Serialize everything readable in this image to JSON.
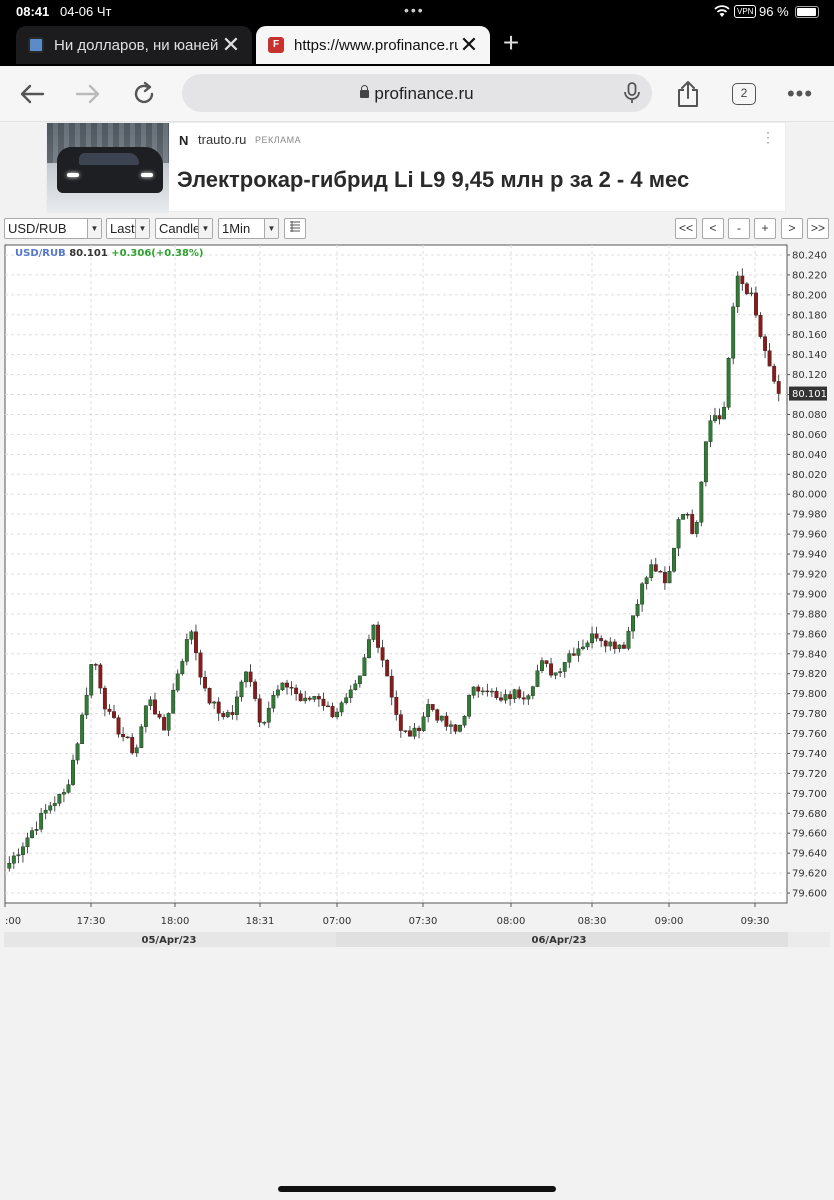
{
  "status_bar": {
    "time": "08:41",
    "date": "04-06 Чт",
    "vpn": "VPN",
    "battery": "96 %"
  },
  "tabs": [
    {
      "title": "Ни долларов, ни юаней",
      "close": "✕"
    },
    {
      "title": "https://www.profinance.ru",
      "close": "✕",
      "favicon_text": "F"
    }
  ],
  "new_tab_icon": "+",
  "address_bar": {
    "url": "profinance.ru"
  },
  "tab_count": "2",
  "menu_icon": "•••",
  "ad": {
    "source": "trauto.ru",
    "label": "РЕКЛАМА",
    "headline": "Электрокар-гибрид Li L9 9,45 млн р за 2 - 4 мес",
    "menu_icon": "⋮"
  },
  "controls": {
    "symbol": "USD/RUB",
    "price_type": "Last",
    "chart_type": "Candle",
    "interval": "1Min",
    "nav_buttons": [
      "<<",
      "<",
      "-",
      "+",
      ">",
      ">>"
    ]
  },
  "colors": {
    "up": "#2e7d32",
    "down": "#8b1a1a",
    "grid": "#dddddd",
    "price_tag": "#333333"
  },
  "chart_data": {
    "type": "candlestick",
    "symbol": "USD/RUB",
    "last": "80.101",
    "change": "+0.306(+0.38%)",
    "ylim": [
      79.59,
      80.25
    ],
    "y_ticks": [
      "80.240",
      "80.220",
      "80.200",
      "80.180",
      "80.160",
      "80.140",
      "80.120",
      "80.100",
      "80.080",
      "80.060",
      "80.040",
      "80.020",
      "80.000",
      "79.980",
      "79.960",
      "79.940",
      "79.920",
      "79.900",
      "79.880",
      "79.860",
      "79.840",
      "79.820",
      "79.800",
      "79.780",
      "79.760",
      "79.740",
      "79.720",
      "79.700",
      "79.680",
      "79.660",
      "79.640",
      "79.620",
      "79.600"
    ],
    "x_ticks": [
      ":00",
      "17:30",
      "18:00",
      "18:31",
      "07:00",
      "07:30",
      "08:00",
      "08:30",
      "09:00",
      "09:30"
    ],
    "dates": [
      "05/Apr/23",
      "06/Apr/23"
    ],
    "grid": true,
    "close_path": [
      79.63,
      79.65,
      79.67,
      79.69,
      79.7,
      79.76,
      79.84,
      79.78,
      79.76,
      79.74,
      79.8,
      79.76,
      79.82,
      79.865,
      79.8,
      79.78,
      79.78,
      79.83,
      79.77,
      79.8,
      79.81,
      79.79,
      79.8,
      79.78,
      79.79,
      79.81,
      79.87,
      79.82,
      79.76,
      79.76,
      79.79,
      79.77,
      79.76,
      79.8,
      79.81,
      79.79,
      79.8,
      79.8,
      79.83,
      79.82,
      79.84,
      79.85,
      79.86,
      79.85,
      79.85,
      79.9,
      79.93,
      79.905,
      79.99,
      79.96,
      80.08,
      80.075,
      80.22,
      80.2,
      80.14,
      80.101
    ],
    "candle_count": 170,
    "seed": 7
  }
}
